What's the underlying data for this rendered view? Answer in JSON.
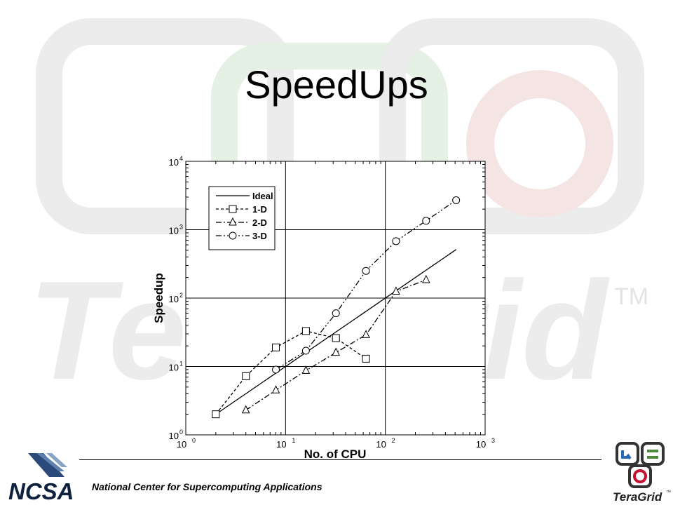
{
  "slide": {
    "title": "SpeedUps",
    "footer": "National Center for Supercomputing Applications"
  },
  "watermark": {
    "word": "TeraGrid",
    "trademark": "TM"
  },
  "logos": {
    "ncsa": {
      "text": "NCSA"
    },
    "teragrid": {
      "text": "TeraGrid",
      "trademark": "™"
    }
  },
  "colors": {
    "watermark": "#ececec",
    "watermark_red": "#f5e4e4",
    "watermark_green": "#e6f1e6",
    "ncsa_blue": "#2a4a7a",
    "teragrid_red": "#c8102e",
    "teragrid_green": "#4a8a3a"
  },
  "chart_data": {
    "type": "line",
    "xscale": "log",
    "yscale": "log",
    "xlim": [
      1,
      1000
    ],
    "ylim": [
      1,
      10000
    ],
    "xlabel": "No. of CPU",
    "ylabel": "Speedup",
    "x_ticks": [
      {
        "base": "10",
        "exp": "0"
      },
      {
        "base": "10",
        "exp": "1"
      },
      {
        "base": "10",
        "exp": "2"
      },
      {
        "base": "10",
        "exp": "3"
      }
    ],
    "y_ticks": [
      {
        "base": "10",
        "exp": "0"
      },
      {
        "base": "10",
        "exp": "1"
      },
      {
        "base": "10",
        "exp": "2"
      },
      {
        "base": "10",
        "exp": "3"
      },
      {
        "base": "10",
        "exp": "4"
      }
    ],
    "grid": true,
    "legend": "top-left",
    "series": [
      {
        "name": "Ideal",
        "style": "solid",
        "marker": "none",
        "x": [
          2,
          512
        ],
        "y": [
          2,
          512
        ]
      },
      {
        "name": "1-D",
        "style": "dashed",
        "marker": "square",
        "x": [
          2,
          4,
          8,
          16,
          32,
          64
        ],
        "y": [
          2,
          7.2,
          19,
          33,
          26,
          13
        ]
      },
      {
        "name": "2-D",
        "style": "dash-dot",
        "marker": "triangle",
        "x": [
          4,
          8,
          16,
          32,
          64,
          128,
          256
        ],
        "y": [
          2.3,
          4.5,
          8.7,
          16,
          29,
          125,
          185
        ]
      },
      {
        "name": "3-D",
        "style": "dash-dot-dot",
        "marker": "circle",
        "x": [
          8,
          16,
          32,
          64,
          128,
          256,
          512
        ],
        "y": [
          9,
          17,
          60,
          250,
          680,
          1350,
          2700
        ]
      }
    ]
  }
}
